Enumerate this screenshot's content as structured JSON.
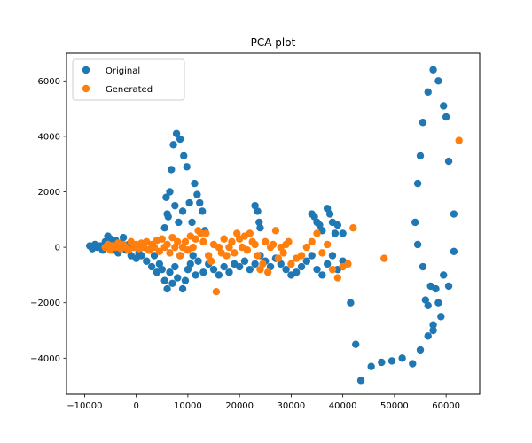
{
  "chart_data": {
    "type": "scatter",
    "title": "PCA plot",
    "xlabel": "",
    "ylabel": "",
    "xlim": [
      -13500,
      66500
    ],
    "ylim": [
      -5300,
      7000
    ],
    "xticks": [
      -10000,
      0,
      10000,
      20000,
      30000,
      40000,
      50000,
      60000
    ],
    "xtick_labels": [
      "−10000",
      "0",
      "10000",
      "20000",
      "30000",
      "40000",
      "50000",
      "60000"
    ],
    "yticks": [
      -4000,
      -2000,
      0,
      2000,
      4000,
      6000
    ],
    "ytick_labels": [
      "−4000",
      "−2000",
      "0",
      "2000",
      "4000",
      "6000"
    ],
    "grid": false,
    "legend_position": "top-left",
    "series": [
      {
        "name": "Original",
        "color": "#1f77b4",
        "points": [
          [
            -9000,
            50
          ],
          [
            -8500,
            -50
          ],
          [
            -8000,
            100
          ],
          [
            -7500,
            0
          ],
          [
            -7000,
            50
          ],
          [
            -6500,
            -100
          ],
          [
            -6000,
            200
          ],
          [
            -5500,
            400
          ],
          [
            -5000,
            300
          ],
          [
            -4500,
            -100
          ],
          [
            -4000,
            250
          ],
          [
            -3500,
            -200
          ],
          [
            -3000,
            150
          ],
          [
            -2500,
            350
          ],
          [
            -2000,
            -100
          ],
          [
            -1500,
            100
          ],
          [
            -1000,
            -300
          ],
          [
            -500,
            0
          ],
          [
            0,
            -400
          ],
          [
            500,
            -200
          ],
          [
            1000,
            -300
          ],
          [
            1500,
            0
          ],
          [
            2000,
            -500
          ],
          [
            2500,
            -100
          ],
          [
            3000,
            -700
          ],
          [
            3500,
            -300
          ],
          [
            4000,
            -900
          ],
          [
            4500,
            -600
          ],
          [
            5000,
            -800
          ],
          [
            5500,
            -1200
          ],
          [
            6000,
            -1500
          ],
          [
            6500,
            -900
          ],
          [
            7000,
            -1300
          ],
          [
            7500,
            -700
          ],
          [
            8000,
            -1100
          ],
          [
            8500,
            -300
          ],
          [
            9000,
            -1500
          ],
          [
            9500,
            -1200
          ],
          [
            10000,
            -800
          ],
          [
            10500,
            -600
          ],
          [
            11000,
            -300
          ],
          [
            11500,
            -1000
          ],
          [
            12000,
            -500
          ],
          [
            13000,
            -900
          ],
          [
            14000,
            -600
          ],
          [
            15000,
            -800
          ],
          [
            16000,
            -1000
          ],
          [
            17000,
            -700
          ],
          [
            18000,
            -900
          ],
          [
            19000,
            -600
          ],
          [
            20000,
            -700
          ],
          [
            21000,
            -500
          ],
          [
            22000,
            -800
          ],
          [
            23000,
            -600
          ],
          [
            24000,
            -300
          ],
          [
            25000,
            -500
          ],
          [
            26000,
            -700
          ],
          [
            27000,
            -400
          ],
          [
            28000,
            -600
          ],
          [
            29000,
            -800
          ],
          [
            30000,
            -1000
          ],
          [
            31000,
            -900
          ],
          [
            32000,
            -700
          ],
          [
            33000,
            -500
          ],
          [
            34000,
            -300
          ],
          [
            35000,
            -800
          ],
          [
            36000,
            -1000
          ],
          [
            37000,
            -600
          ],
          [
            38000,
            -300
          ],
          [
            39000,
            -800
          ],
          [
            40000,
            -500
          ],
          [
            5500,
            700
          ],
          [
            6000,
            1200
          ],
          [
            6500,
            2000
          ],
          [
            6800,
            2800
          ],
          [
            7200,
            3700
          ],
          [
            7800,
            4100
          ],
          [
            8500,
            3900
          ],
          [
            9200,
            3300
          ],
          [
            9800,
            2900
          ],
          [
            10300,
            1600
          ],
          [
            10800,
            900
          ],
          [
            11300,
            2300
          ],
          [
            11800,
            1900
          ],
          [
            12300,
            1600
          ],
          [
            12800,
            1300
          ],
          [
            13300,
            600
          ],
          [
            5800,
            1800
          ],
          [
            6200,
            1100
          ],
          [
            7500,
            1500
          ],
          [
            8200,
            900
          ],
          [
            9000,
            1300
          ],
          [
            23000,
            1500
          ],
          [
            23500,
            1300
          ],
          [
            23800,
            900
          ],
          [
            24000,
            700
          ],
          [
            34000,
            1200
          ],
          [
            34500,
            1100
          ],
          [
            35000,
            900
          ],
          [
            35500,
            800
          ],
          [
            36000,
            600
          ],
          [
            37000,
            1400
          ],
          [
            37500,
            1200
          ],
          [
            38000,
            900
          ],
          [
            38500,
            500
          ],
          [
            39000,
            800
          ],
          [
            40000,
            500
          ],
          [
            41500,
            -2000
          ],
          [
            42500,
            -3500
          ],
          [
            43500,
            -4800
          ],
          [
            45500,
            -4300
          ],
          [
            47500,
            -4150
          ],
          [
            49500,
            -4100
          ],
          [
            51500,
            -4000
          ],
          [
            53500,
            -4200
          ],
          [
            55000,
            -3700
          ],
          [
            56500,
            -3200
          ],
          [
            57500,
            -2800
          ],
          [
            58500,
            -2000
          ],
          [
            59500,
            -1000
          ],
          [
            60500,
            -1400
          ],
          [
            61500,
            1200
          ],
          [
            61500,
            -150
          ],
          [
            60500,
            3100
          ],
          [
            60000,
            4700
          ],
          [
            59500,
            5100
          ],
          [
            58500,
            6000
          ],
          [
            57500,
            6400
          ],
          [
            56500,
            5600
          ],
          [
            55500,
            4500
          ],
          [
            55000,
            3300
          ],
          [
            54500,
            2300
          ],
          [
            54000,
            900
          ],
          [
            54500,
            100
          ],
          [
            55500,
            -700
          ],
          [
            56000,
            -1900
          ],
          [
            56500,
            -2100
          ],
          [
            57000,
            -1400
          ],
          [
            58000,
            -1500
          ],
          [
            59000,
            -2500
          ],
          [
            57500,
            -3000
          ]
        ]
      },
      {
        "name": "Generated",
        "color": "#ff7f0e",
        "points": [
          [
            -6000,
            0
          ],
          [
            -5500,
            100
          ],
          [
            -5000,
            -100
          ],
          [
            -4500,
            50
          ],
          [
            -4000,
            0
          ],
          [
            -3500,
            150
          ],
          [
            -3000,
            -50
          ],
          [
            -2500,
            100
          ],
          [
            -2000,
            0
          ],
          [
            -1500,
            -100
          ],
          [
            -1000,
            200
          ],
          [
            -500,
            0
          ],
          [
            0,
            100
          ],
          [
            500,
            -50
          ],
          [
            1000,
            150
          ],
          [
            1500,
            0
          ],
          [
            2000,
            200
          ],
          [
            2500,
            -100
          ],
          [
            3000,
            100
          ],
          [
            3500,
            0
          ],
          [
            4000,
            250
          ],
          [
            4500,
            -150
          ],
          [
            5000,
            300
          ],
          [
            5500,
            0
          ],
          [
            6000,
            100
          ],
          [
            6500,
            -200
          ],
          [
            7000,
            350
          ],
          [
            7500,
            0
          ],
          [
            8000,
            200
          ],
          [
            8500,
            -300
          ],
          [
            9000,
            0
          ],
          [
            9500,
            200
          ],
          [
            10000,
            -100
          ],
          [
            10500,
            400
          ],
          [
            11000,
            0
          ],
          [
            11500,
            300
          ],
          [
            12000,
            600
          ],
          [
            12500,
            500
          ],
          [
            13000,
            200
          ],
          [
            13500,
            500
          ],
          [
            14000,
            -300
          ],
          [
            14500,
            -500
          ],
          [
            15000,
            100
          ],
          [
            15500,
            -1600
          ],
          [
            16000,
            0
          ],
          [
            16500,
            -200
          ],
          [
            17000,
            300
          ],
          [
            17500,
            -300
          ],
          [
            18000,
            0
          ],
          [
            18500,
            200
          ],
          [
            19000,
            -200
          ],
          [
            19500,
            500
          ],
          [
            20000,
            300
          ],
          [
            20500,
            0
          ],
          [
            21000,
            400
          ],
          [
            21500,
            -100
          ],
          [
            22000,
            500
          ],
          [
            22500,
            200
          ],
          [
            23000,
            100
          ],
          [
            23500,
            -300
          ],
          [
            24000,
            -800
          ],
          [
            24500,
            -600
          ],
          [
            25000,
            200
          ],
          [
            25500,
            -900
          ],
          [
            26000,
            0
          ],
          [
            26500,
            100
          ],
          [
            27000,
            600
          ],
          [
            27500,
            -400
          ],
          [
            28000,
            0
          ],
          [
            28500,
            -200
          ],
          [
            29000,
            100
          ],
          [
            29500,
            200
          ],
          [
            30000,
            -600
          ],
          [
            31000,
            -400
          ],
          [
            32000,
            -300
          ],
          [
            33000,
            0
          ],
          [
            34000,
            200
          ],
          [
            35000,
            500
          ],
          [
            36000,
            -200
          ],
          [
            37000,
            100
          ],
          [
            38000,
            -800
          ],
          [
            39000,
            -1100
          ],
          [
            40000,
            -700
          ],
          [
            41000,
            -600
          ],
          [
            42000,
            700
          ],
          [
            48000,
            -400
          ],
          [
            62500,
            3850
          ]
        ]
      }
    ]
  }
}
